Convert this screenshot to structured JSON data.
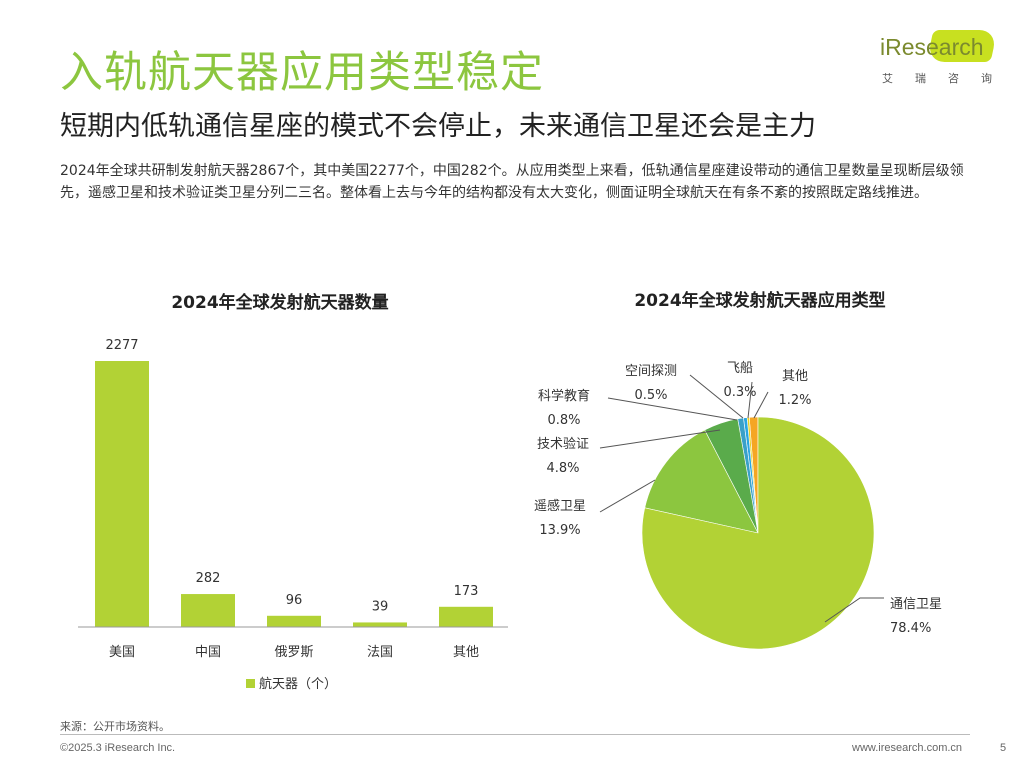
{
  "title": "入轨航天器应用类型稳定",
  "subtitle": "短期内低轨通信星座的模式不会停止，未来通信卫星还会是主力",
  "body": "2024年全球共研制发射航天器2867个，其中美国2277个，中国282个。从应用类型上来看，低轨通信星座建设带动的通信卫星数量呈现断层级领先，遥感卫星和技术验证类卫星分列二三名。整体看上去与今年的结构都没有太大变化，侧面证明全球航天在有条不紊的按照既定路线推进。",
  "logo": {
    "name": "iResearch",
    "sub": "艾瑞咨询"
  },
  "chart_data": [
    {
      "type": "bar",
      "title": "2024年全球发射航天器数量",
      "categories": [
        "美国",
        "中国",
        "俄罗斯",
        "法国",
        "其他"
      ],
      "series": [
        {
          "name": "航天器（个）",
          "values": [
            2277,
            282,
            96,
            39,
            173
          ]
        }
      ],
      "value_labels": [
        "2277",
        "282",
        "96",
        "39",
        "173"
      ],
      "ylim": [
        0,
        2277
      ],
      "grid": false,
      "legend": "bottom",
      "color": "#b2d235"
    },
    {
      "type": "pie",
      "title": "2024年全球发射航天器应用类型",
      "slices": [
        {
          "label": "通信卫星",
          "value": 78.4,
          "display": "78.4%",
          "color": "#b2d235"
        },
        {
          "label": "遥感卫星",
          "value": 13.9,
          "display": "13.9%",
          "color": "#8cc63f"
        },
        {
          "label": "技术验证",
          "value": 4.8,
          "display": "4.8%",
          "color": "#5aab4b"
        },
        {
          "label": "科学教育",
          "value": 0.8,
          "display": "0.8%",
          "color": "#3aa0c8"
        },
        {
          "label": "空间探测",
          "value": 0.5,
          "display": "0.5%",
          "color": "#2aa5e0"
        },
        {
          "label": "飞船",
          "value": 0.3,
          "display": "0.3%",
          "color": "#e8d020"
        },
        {
          "label": "其他",
          "value": 1.2,
          "display": "1.2%",
          "color": "#f5a623"
        }
      ]
    }
  ],
  "source": "来源：公开市场资料。",
  "footer": {
    "copyright": "©2025.3 iResearch Inc.",
    "url": "www.iresearch.com.cn",
    "page": "5"
  }
}
